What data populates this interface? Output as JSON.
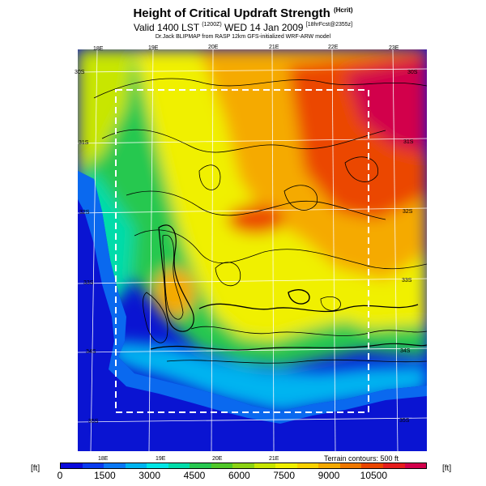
{
  "header": {
    "title": "Height of Critical Updraft Strength",
    "title_suffix": "(Hcrit)",
    "valid": "Valid 1400 LST",
    "valid_code": "(1200Z)",
    "valid_date": "WED 14 Jan 2009",
    "valid_run": "[18hrFcst@2355z]",
    "byline": "Dr.Jack BLIPMAP from RASP 12km GFS-initialized WRF-ARW model"
  },
  "map": {
    "lon_labels_top": [
      "18E",
      "19E",
      "20E",
      "21E",
      "22E",
      "23E"
    ],
    "lon_labels_bottom": [
      "18E",
      "19E",
      "20E",
      "21E"
    ],
    "lat_labels_left": [
      "30S",
      "31S",
      "32S",
      "33S",
      "34S",
      "35S"
    ],
    "lat_labels_right": [
      "30S",
      "31S",
      "32S",
      "33S",
      "34S",
      "35S"
    ],
    "terrain_note": "Terrain contours: 500 ft"
  },
  "colorbar": {
    "unit_left": "[ft]",
    "unit_right": "[ft]",
    "tick_labels": [
      "0",
      "1500",
      "3000",
      "4500",
      "6000",
      "7500",
      "9000",
      "10500"
    ],
    "colors": [
      "#0a0adc",
      "#0a3cf0",
      "#0a78f5",
      "#00b4f0",
      "#00e6e6",
      "#00dcaa",
      "#28c850",
      "#50c828",
      "#8cd214",
      "#c8e600",
      "#f0f000",
      "#fad200",
      "#f5aa00",
      "#f07800",
      "#eb4600",
      "#e61e1e",
      "#d2004b"
    ]
  },
  "palette": {
    "ocean": "#0a14d2",
    "coast": "#00c8f0",
    "frame_box": "#ffffff"
  }
}
